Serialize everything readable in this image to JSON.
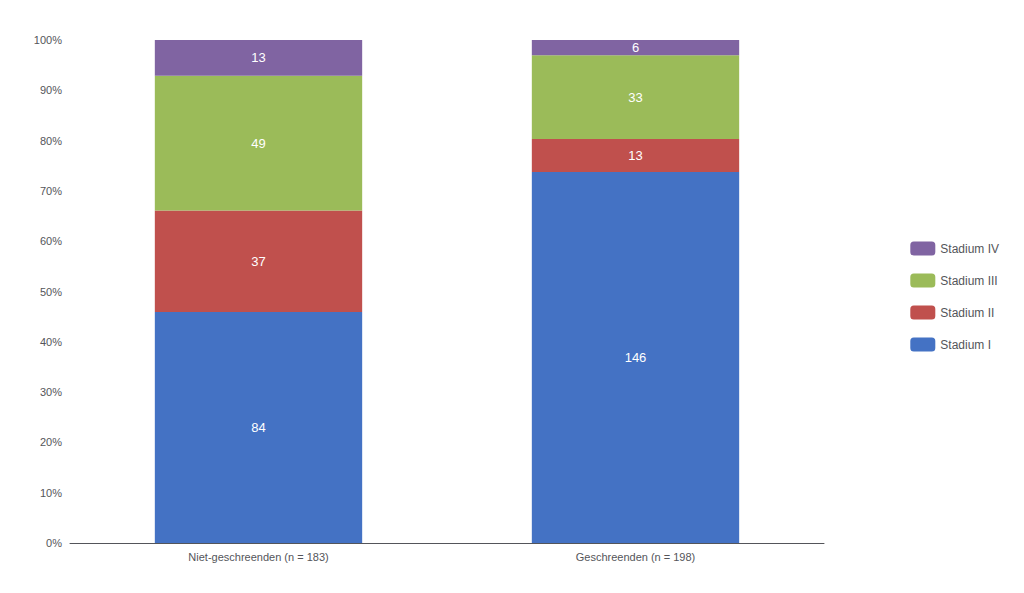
{
  "chart_data": {
    "type": "bar",
    "stacked": true,
    "categories": [
      "Niet-geschreenden (n = 183)",
      "Geschreenden (n = 198)"
    ],
    "series": [
      {
        "name": "Stadium I",
        "color": "#4472C4",
        "values": [
          0.45901639344262296,
          0.7373737373737373
        ],
        "counts": [
          84,
          146
        ]
      },
      {
        "name": "Stadium II",
        "color": "#C0504D",
        "values": [
          0.20218579234972678,
          0.06565656565656566
        ],
        "counts": [
          37,
          13
        ]
      },
      {
        "name": "Stadium III",
        "color": "#9BBB59",
        "values": [
          0.2677595628415301,
          0.16666666666666666
        ],
        "counts": [
          49,
          33
        ]
      },
      {
        "name": "Stadium IV",
        "color": "#8064A2",
        "values": [
          0.07103825136612021,
          0.030303030303030304
        ],
        "counts": [
          13,
          6
        ]
      }
    ],
    "ylim": [
      0,
      1.0
    ],
    "yticks": [
      {
        "value": 0.0,
        "label": "0%"
      },
      {
        "value": 0.1,
        "label": "10%"
      },
      {
        "value": 0.2,
        "label": "20%"
      },
      {
        "value": 0.3,
        "label": "30%"
      },
      {
        "value": 0.4,
        "label": "40%"
      },
      {
        "value": 0.5,
        "label": "50%"
      },
      {
        "value": 0.6,
        "label": "60%"
      },
      {
        "value": 0.7,
        "label": "70%"
      },
      {
        "value": 0.8,
        "label": "80%"
      },
      {
        "value": 0.9,
        "label": "90%"
      },
      {
        "value": 1.0,
        "label": "100%"
      }
    ],
    "grid": false,
    "legend": "right"
  }
}
